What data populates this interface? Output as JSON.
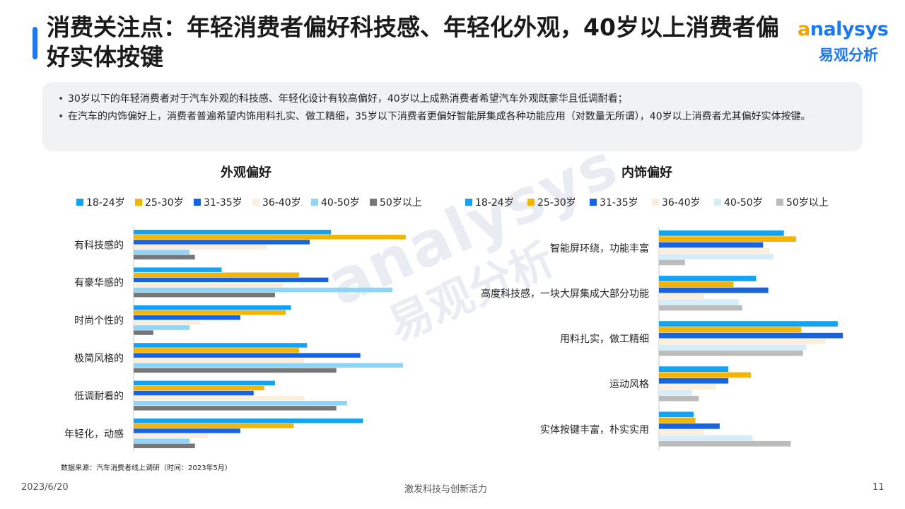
{
  "title": "消费关注点：年轻消费者偏好科技感、年轻化外观，40岁以上消费者偏好实体按键",
  "logo": {
    "text_a": "a",
    "text_rest": "nalysys",
    "text_cn": "易观分析"
  },
  "summary": [
    "30岁以下的年轻消费者对于汽车外观的科技感、年轻化设计有较高偏好，40岁以上成熟消费者希望汽车外观既豪华且低调耐看；",
    "在汽车的内饰偏好上，消费者普遍希望内饰用料扎实、做工精细，35岁以下消费者更偏好智能屏集成各种功能应用（对数量无所谓），40岁以上消费者尤其偏好实体按键。"
  ],
  "watermark": {
    "word": "analysys",
    "cn": "易观分析"
  },
  "colors": {
    "s1824": "#12a3f2",
    "s2530": "#f5b400",
    "s3135": "#1763e0",
    "s3640": "#fbeedd",
    "s4050": "#8fd3f7",
    "s50": "#777777",
    "s4050_right": "#d6ecf8",
    "s50_right": "#bcbcbc"
  },
  "chart_data": [
    {
      "type": "bar",
      "orientation": "horizontal",
      "title": "外观偏好",
      "categories": [
        "有科技感的",
        "有豪华感的",
        "时尚个性的",
        "极简风格的",
        "低调耐看的",
        "年轻化，动感"
      ],
      "series": [
        {
          "name": "18-24岁",
          "values": [
            37,
            16.5,
            29.5,
            32.5,
            26.5,
            43
          ]
        },
        {
          "name": "25-30岁",
          "values": [
            51,
            31,
            28.5,
            31,
            24.5,
            30
          ]
        },
        {
          "name": "31-35岁",
          "values": [
            33,
            36.5,
            20,
            42.5,
            22.5,
            20
          ]
        },
        {
          "name": "36-40岁",
          "values": [
            25,
            28,
            12.5,
            32,
            32,
            14
          ]
        },
        {
          "name": "40-50岁",
          "values": [
            10.5,
            48.5,
            10.5,
            50.5,
            40,
            10.5
          ]
        },
        {
          "name": "50岁以上",
          "values": [
            11.5,
            26.5,
            3.7,
            38,
            38,
            11.5
          ]
        }
      ],
      "xlim": [
        0,
        55
      ],
      "grid": false,
      "legend": "top"
    },
    {
      "type": "bar",
      "orientation": "horizontal",
      "title": "内饰偏好",
      "categories": [
        "智能屏环绕，功能丰富",
        "高度科技感，一块大屏集成大部分功能",
        "用料扎实，做工精细",
        "运动风格",
        "实体按键丰富，朴实实用"
      ],
      "series": [
        {
          "name": "18-24岁",
          "values": [
            36,
            28,
            51.5,
            20,
            10
          ]
        },
        {
          "name": "25-30岁",
          "values": [
            39.5,
            21.5,
            41,
            26.5,
            10.5
          ]
        },
        {
          "name": "31-35岁",
          "values": [
            30,
            31.5,
            53,
            20,
            17.5
          ]
        },
        {
          "name": "36-40岁",
          "values": [
            32,
            13,
            48,
            16.5,
            13
          ]
        },
        {
          "name": "40-50岁",
          "values": [
            33,
            23,
            42.5,
            9.5,
            27
          ]
        },
        {
          "name": "50岁以上",
          "values": [
            7.5,
            24,
            41.5,
            11.5,
            38
          ]
        }
      ],
      "xlim": [
        0,
        55
      ],
      "grid": false,
      "legend": "top"
    }
  ],
  "source": "数据来源：汽车消费者线上调研（时间：2023年5月）",
  "footer": {
    "date": "2023/6/20",
    "slogan": "激发科技与创新活力",
    "page": "11"
  }
}
